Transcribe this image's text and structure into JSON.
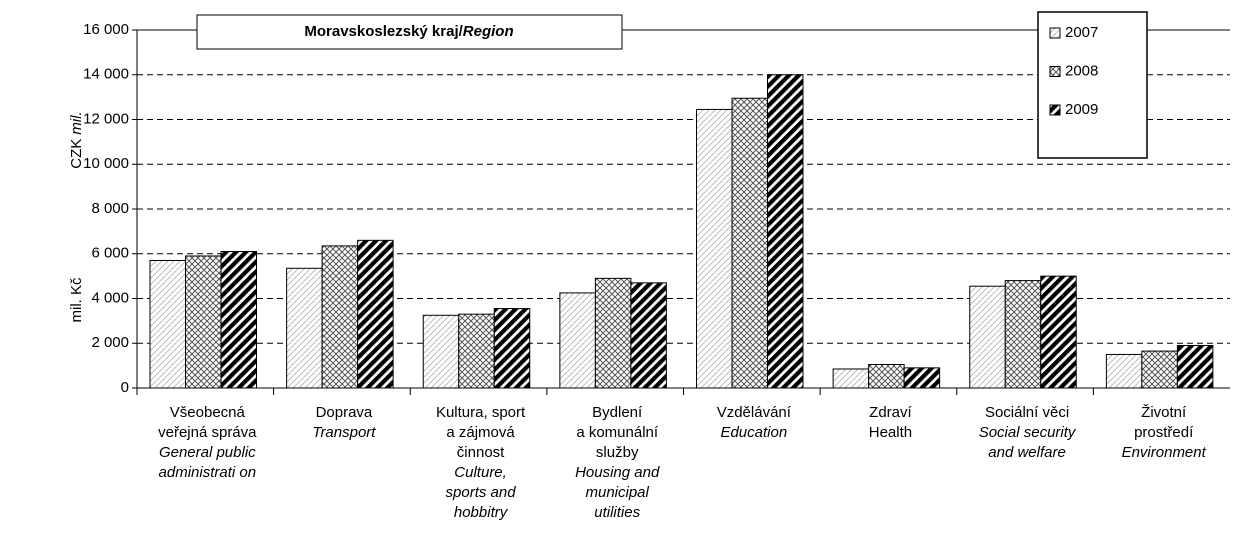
{
  "chart_data": {
    "type": "bar",
    "title": [
      "Moravskoslezský kraj/",
      "Region"
    ],
    "ylabel": "mil. Kč",
    "ylabel_en": [
      "CZK",
      "mil."
    ],
    "categories": [
      {
        "lines": [
          "Všeobecná",
          "veřejná správa",
          "General public",
          "administrati on"
        ],
        "italic_from": 2
      },
      {
        "lines": [
          "Doprava",
          "Transport"
        ],
        "italic_from": 1
      },
      {
        "lines": [
          "Kultura, sport",
          "a zájmová",
          "činnost",
          "Culture,",
          "sports and",
          "hobbitry"
        ],
        "italic_from": 3
      },
      {
        "lines": [
          "Bydlení",
          "a komunální",
          "služby",
          "Housing and",
          "municipal",
          "utilities"
        ],
        "italic_from": 3
      },
      {
        "lines": [
          "Vzdělávání",
          "Education"
        ],
        "italic_from": 1
      },
      {
        "lines": [
          "Zdraví",
          "Health"
        ],
        "italic_from": null
      },
      {
        "lines": [
          "Sociální věci",
          "Social security",
          "and welfare"
        ],
        "italic_from": 1
      },
      {
        "lines": [
          "Životní",
          "prostředí",
          "Environment"
        ],
        "italic_from": 2
      }
    ],
    "series": [
      {
        "name": "2007",
        "pattern": "dots",
        "values": [
          5700,
          5350,
          3250,
          4250,
          12450,
          850,
          4550,
          1500
        ]
      },
      {
        "name": "2008",
        "pattern": "cross",
        "values": [
          5900,
          6350,
          3300,
          4900,
          12950,
          1050,
          4800,
          1650
        ]
      },
      {
        "name": "2009",
        "pattern": "stripes",
        "values": [
          6100,
          6600,
          3550,
          4700,
          14000,
          900,
          5000,
          1900
        ]
      }
    ],
    "ylim": [
      0,
      16000
    ],
    "yticks": [
      0,
      {
        "value": 2000,
        "label": "2 000"
      },
      {
        "value": 4000,
        "label": "4 000"
      },
      {
        "value": 6000,
        "label": "6 000"
      },
      {
        "value": 8000,
        "label": "8 000"
      },
      {
        "value": 10000,
        "label": "10 000"
      },
      {
        "value": 12000,
        "label": "12 000"
      },
      {
        "value": 14000,
        "label": "14 000"
      },
      {
        "value": 16000,
        "label": "16 000"
      }
    ],
    "grid": true,
    "legend": "top-right"
  }
}
